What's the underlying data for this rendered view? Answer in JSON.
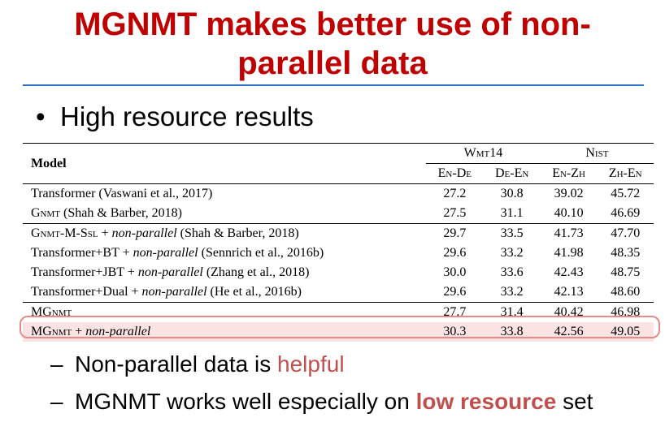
{
  "slide": {
    "title_line1": "MGNMT makes better use of non-",
    "title_line2": "parallel data",
    "bullet": "High resource results",
    "bullet_marker": "•",
    "subbullets": [
      {
        "marker": "–",
        "pre": "Non-parallel data is ",
        "em": "helpful",
        "post": ""
      },
      {
        "marker": "–",
        "pre": "MGNMT works well especially on ",
        "em": "low resource",
        "post": " set"
      }
    ],
    "colors": {
      "title": "#c00000",
      "rule": "#2e74c9",
      "emphasis": "#c0504d",
      "highlight": "#fbe3e3"
    }
  },
  "table": {
    "model_header": "Model",
    "groups": [
      "Wmt14",
      "Nist"
    ],
    "subcolumns": [
      "En-De",
      "De-En",
      "En-Zh",
      "Zh-En"
    ],
    "rows": [
      {
        "name": "Transformer (Vaswani et al., 2017)",
        "values": [
          "27.2",
          "30.8",
          "39.02",
          "45.72"
        ]
      },
      {
        "name_sc": "Gnmt",
        "name_rest": " (Shah & Barber, 2018)",
        "values": [
          "27.5",
          "31.1",
          "40.10",
          "46.69"
        ]
      },
      {
        "name_sc": "Gnmt-M-Ssl",
        "name_plus": " + ",
        "name_it": "non-parallel",
        "name_rest": " (Shah & Barber, 2018)",
        "values": [
          "29.7",
          "33.5",
          "41.73",
          "47.70"
        ]
      },
      {
        "name_pre": "Transformer+BT + ",
        "name_it": "non-parallel",
        "name_rest": " (Sennrich et al., 2016b)",
        "values": [
          "29.6",
          "33.2",
          "41.98",
          "48.35"
        ]
      },
      {
        "name_pre": "Transformer+JBT + ",
        "name_it": "non-parallel",
        "name_rest": " (Zhang et al., 2018)",
        "values": [
          "30.0",
          "33.6",
          "42.43",
          "48.75"
        ]
      },
      {
        "name_pre": "Transformer+Dual + ",
        "name_it": "non-parallel",
        "name_rest": " (He et al., 2016b)",
        "values": [
          "29.6",
          "33.2",
          "42.13",
          "48.60"
        ]
      },
      {
        "name_sc": "MGnmt",
        "values": [
          "27.7",
          "31.4",
          "40.42",
          "46.98"
        ]
      },
      {
        "name_sc": "MGnmt",
        "name_plus": " + ",
        "name_it": "non-parallel",
        "values": [
          "30.3",
          "33.8",
          "42.56",
          "49.05"
        ]
      }
    ]
  }
}
